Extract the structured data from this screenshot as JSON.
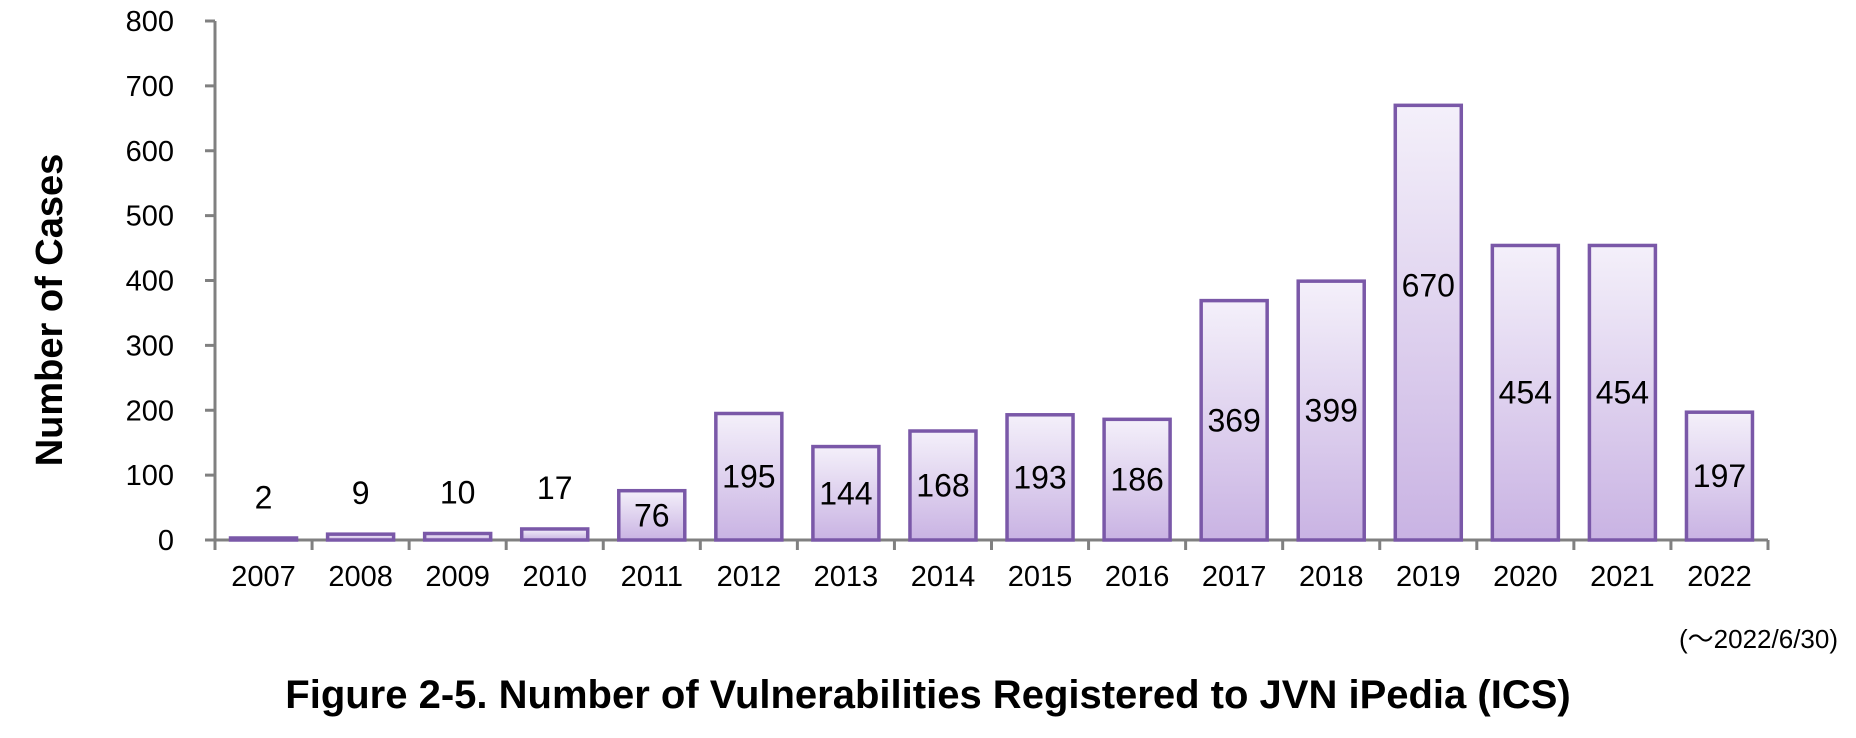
{
  "chart_data": {
    "type": "bar",
    "categories": [
      "2007",
      "2008",
      "2009",
      "2010",
      "2011",
      "2012",
      "2013",
      "2014",
      "2015",
      "2016",
      "2017",
      "2018",
      "2019",
      "2020",
      "2021",
      "2022"
    ],
    "values": [
      2,
      9,
      10,
      17,
      76,
      195,
      144,
      168,
      193,
      186,
      369,
      399,
      670,
      454,
      454,
      197
    ],
    "ylabel": "Number of Cases",
    "xlabel": "",
    "ylim": [
      0,
      800
    ],
    "yticks": [
      0,
      100,
      200,
      300,
      400,
      500,
      600,
      700,
      800
    ],
    "grid": false,
    "note": "(～2022/6/30)",
    "caption": "Figure 2-5. Number of Vulnerabilities Registered to JVN iPedia (ICS)",
    "colors": {
      "bar_fill_top": "#f4f0fa",
      "bar_fill_bottom": "#c9b3e3",
      "bar_stroke": "#7a58a8",
      "axis": "#808080"
    }
  }
}
